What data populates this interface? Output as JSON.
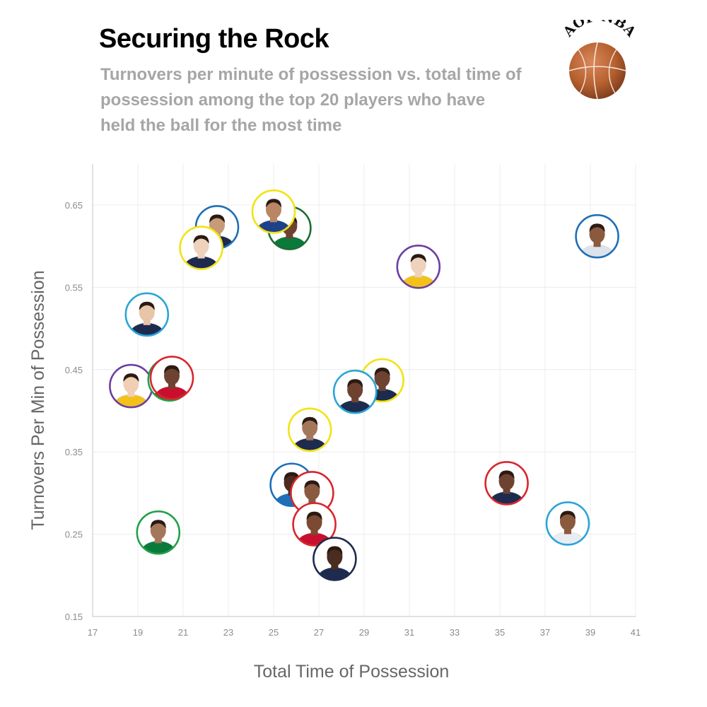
{
  "header": {
    "title": "Securing the Rock",
    "subtitle": "Turnovers per minute of possession vs. total time of possession among the top 20 players who have held the ball for the most time",
    "logo_text": "AOP NBA"
  },
  "chart_data": {
    "type": "scatter",
    "title": "Securing the Rock",
    "xlabel": "Total Time of Possession",
    "ylabel": "Turnovers Per Min of Possession",
    "xlim": [
      17,
      41
    ],
    "ylim": [
      0.15,
      0.7
    ],
    "xticks": [
      "17",
      "19",
      "21",
      "23",
      "25",
      "27",
      "29",
      "31",
      "33",
      "35",
      "37",
      "39",
      "41"
    ],
    "yticks": [
      "0.15",
      "0.25",
      "0.35",
      "0.45",
      "0.55",
      "0.65"
    ],
    "grid": true,
    "points": [
      {
        "x": 19.4,
        "y": 0.517,
        "ring": "#2aa5d8",
        "skin": "#e8c4a8",
        "jersey": "#1d2b4f"
      },
      {
        "x": 18.7,
        "y": 0.43,
        "ring": "#6b3fa0",
        "skin": "#f0cfb4",
        "jersey": "#f2c21b"
      },
      {
        "x": 20.4,
        "y": 0.438,
        "ring": "#22a04a",
        "skin": "#7a4a32",
        "jersey": "#c8102e"
      },
      {
        "x": 20.5,
        "y": 0.44,
        "ring": "#d8262c",
        "skin": "#6e4230",
        "jersey": "#c8102e"
      },
      {
        "x": 19.9,
        "y": 0.252,
        "ring": "#22a04a",
        "skin": "#a5775a",
        "jersey": "#0a7a3b"
      },
      {
        "x": 22.5,
        "y": 0.623,
        "ring": "#1d6fb8",
        "skin": "#c79a78",
        "jersey": "#1d2b4f"
      },
      {
        "x": 21.8,
        "y": 0.598,
        "ring": "#f2e313",
        "skin": "#efd2bc",
        "jersey": "#1d2b4f"
      },
      {
        "x": 25.7,
        "y": 0.622,
        "ring": "#1f6b34",
        "skin": "#6e4230",
        "jersey": "#0a7a3b"
      },
      {
        "x": 25.0,
        "y": 0.642,
        "ring": "#f2e313",
        "skin": "#b98563",
        "jersey": "#1d428a"
      },
      {
        "x": 31.4,
        "y": 0.575,
        "ring": "#6b3fa0",
        "skin": "#efd2bc",
        "jersey": "#f2c21b"
      },
      {
        "x": 39.3,
        "y": 0.612,
        "ring": "#1d6fb8",
        "skin": "#8a5a3e",
        "jersey": "#dde3ea"
      },
      {
        "x": 29.8,
        "y": 0.437,
        "ring": "#f2e313",
        "skin": "#6e4230",
        "jersey": "#1d2b4f"
      },
      {
        "x": 28.6,
        "y": 0.423,
        "ring": "#2aa5d8",
        "skin": "#6e4230",
        "jersey": "#1d2b4f"
      },
      {
        "x": 26.6,
        "y": 0.377,
        "ring": "#f2e313",
        "skin": "#a5775a",
        "jersey": "#1d2b4f"
      },
      {
        "x": 25.8,
        "y": 0.31,
        "ring": "#1d6fb8",
        "skin": "#4a2c20",
        "jersey": "#1d6fb8"
      },
      {
        "x": 26.7,
        "y": 0.3,
        "ring": "#d8262c",
        "skin": "#8a5a3e",
        "jersey": "#ffffff"
      },
      {
        "x": 26.8,
        "y": 0.262,
        "ring": "#d8262c",
        "skin": "#7a4a32",
        "jersey": "#c8102e"
      },
      {
        "x": 27.7,
        "y": 0.22,
        "ring": "#1d2b4f",
        "skin": "#4a2c20",
        "jersey": "#1d2b4f"
      },
      {
        "x": 35.3,
        "y": 0.312,
        "ring": "#d8262c",
        "skin": "#6e4230",
        "jersey": "#1d2b4f"
      },
      {
        "x": 38.0,
        "y": 0.263,
        "ring": "#2aa5d8",
        "skin": "#8a5a3e",
        "jersey": "#e9edf2"
      }
    ]
  }
}
